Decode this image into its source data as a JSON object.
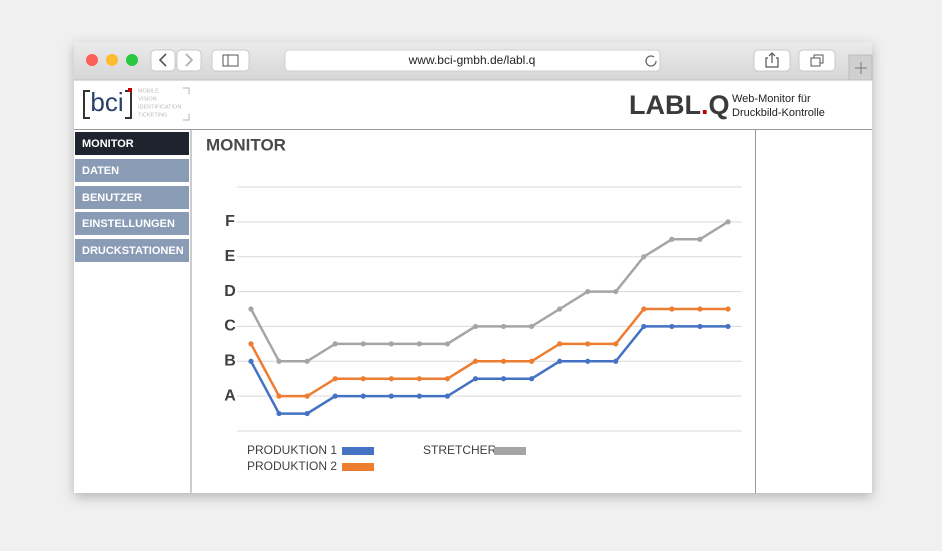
{
  "browser": {
    "url": "www.bci-gmbh.de/labl.q"
  },
  "header": {
    "logo": "bci",
    "logo_tagline": [
      "MOBILE",
      "VISION",
      "IDENTIFICATION",
      "TICKETING"
    ],
    "product": "LABL",
    "product_dot": ".",
    "product_suffix": "Q",
    "subtitle_lines": [
      "Web-Monitor für",
      "Druckbild-Kontrolle"
    ]
  },
  "nav": [
    "MONITOR",
    "DATEN",
    "BENUTZER",
    "EINSTELLUNGEN",
    "DRUCKSTATIONEN"
  ],
  "chart_data": {
    "type": "line",
    "title": "MONITOR",
    "categories": [
      null,
      null,
      null,
      null,
      null,
      null,
      null,
      null,
      null,
      null,
      null,
      null,
      null,
      null,
      null,
      null,
      null,
      null
    ],
    "series": [
      {
        "name": "PRODUKTION 1",
        "color": "#4472c4",
        "values": [
          2,
          0.5,
          0.5,
          1,
          1,
          1,
          1,
          1,
          1.5,
          1.5,
          1.5,
          2,
          2,
          2,
          3,
          3,
          3,
          3
        ]
      },
      {
        "name": "PRODUKTION 2",
        "color": "#ed7d31",
        "values": [
          2.5,
          1,
          1,
          1.5,
          1.5,
          1.5,
          1.5,
          1.5,
          2,
          2,
          2,
          2.5,
          2.5,
          2.5,
          3.5,
          3.5,
          3.5,
          3.5
        ]
      },
      {
        "name": "STRETCHER",
        "color": "#a5a5a5",
        "values": [
          3.5,
          2,
          2,
          2.5,
          2.5,
          2.5,
          2.5,
          2.5,
          3,
          3,
          3,
          3.5,
          4,
          4,
          5,
          5.5,
          5.5,
          6
        ]
      }
    ],
    "ylim": [
      0,
      7
    ],
    "yticks": [
      {
        "value": 1,
        "label": "A"
      },
      {
        "value": 2,
        "label": "B"
      },
      {
        "value": 3,
        "label": "C"
      },
      {
        "value": 4,
        "label": "D"
      },
      {
        "value": 5,
        "label": "E"
      },
      {
        "value": 6,
        "label": "F"
      }
    ],
    "grid": true
  }
}
